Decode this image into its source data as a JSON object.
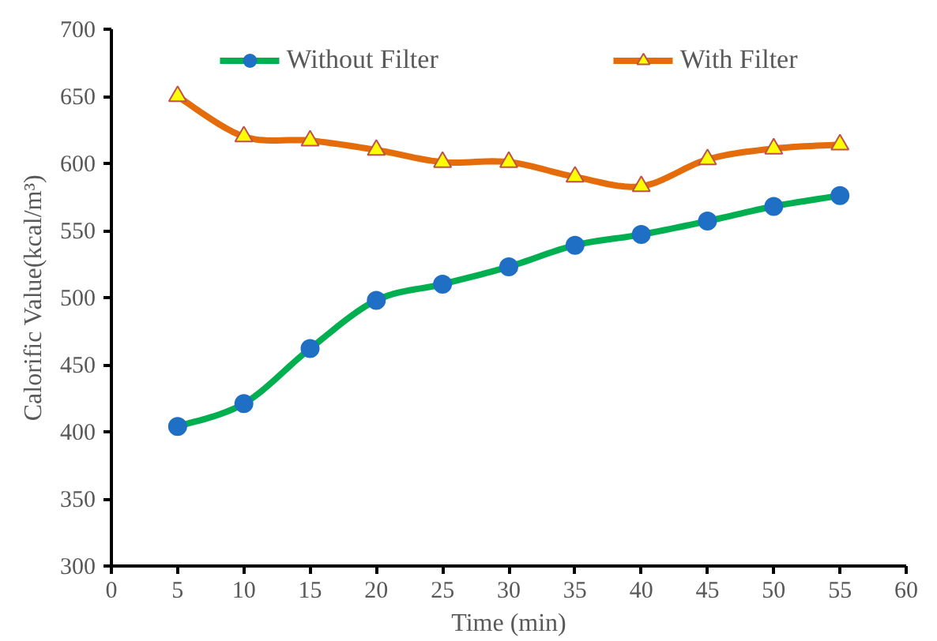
{
  "chart_data": {
    "type": "line",
    "xlabel": "Time (min)",
    "ylabel": "Calorific Value(kcal/m³)",
    "x": [
      5,
      10,
      15,
      20,
      25,
      30,
      35,
      40,
      45,
      50,
      55
    ],
    "series": [
      {
        "name": "Without Filter",
        "color": "#00b050",
        "marker": "circle",
        "values": [
          404,
          421,
          462,
          498,
          510,
          523,
          539,
          547,
          557,
          568,
          576
        ]
      },
      {
        "name": "With Filter",
        "color": "#e46c0a",
        "marker": "triangle",
        "values": [
          650,
          620,
          617,
          610,
          601,
          601,
          590,
          583,
          603,
          611,
          614
        ]
      }
    ],
    "xlim": [
      0,
      60
    ],
    "xticks": [
      0,
      5,
      10,
      15,
      20,
      25,
      30,
      35,
      40,
      45,
      50,
      55,
      60
    ],
    "ylim": [
      300,
      700
    ],
    "yticks": [
      300,
      350,
      400,
      450,
      500,
      550,
      600,
      650,
      700
    ],
    "grid": false,
    "legend": "top",
    "line_style": "solid"
  }
}
